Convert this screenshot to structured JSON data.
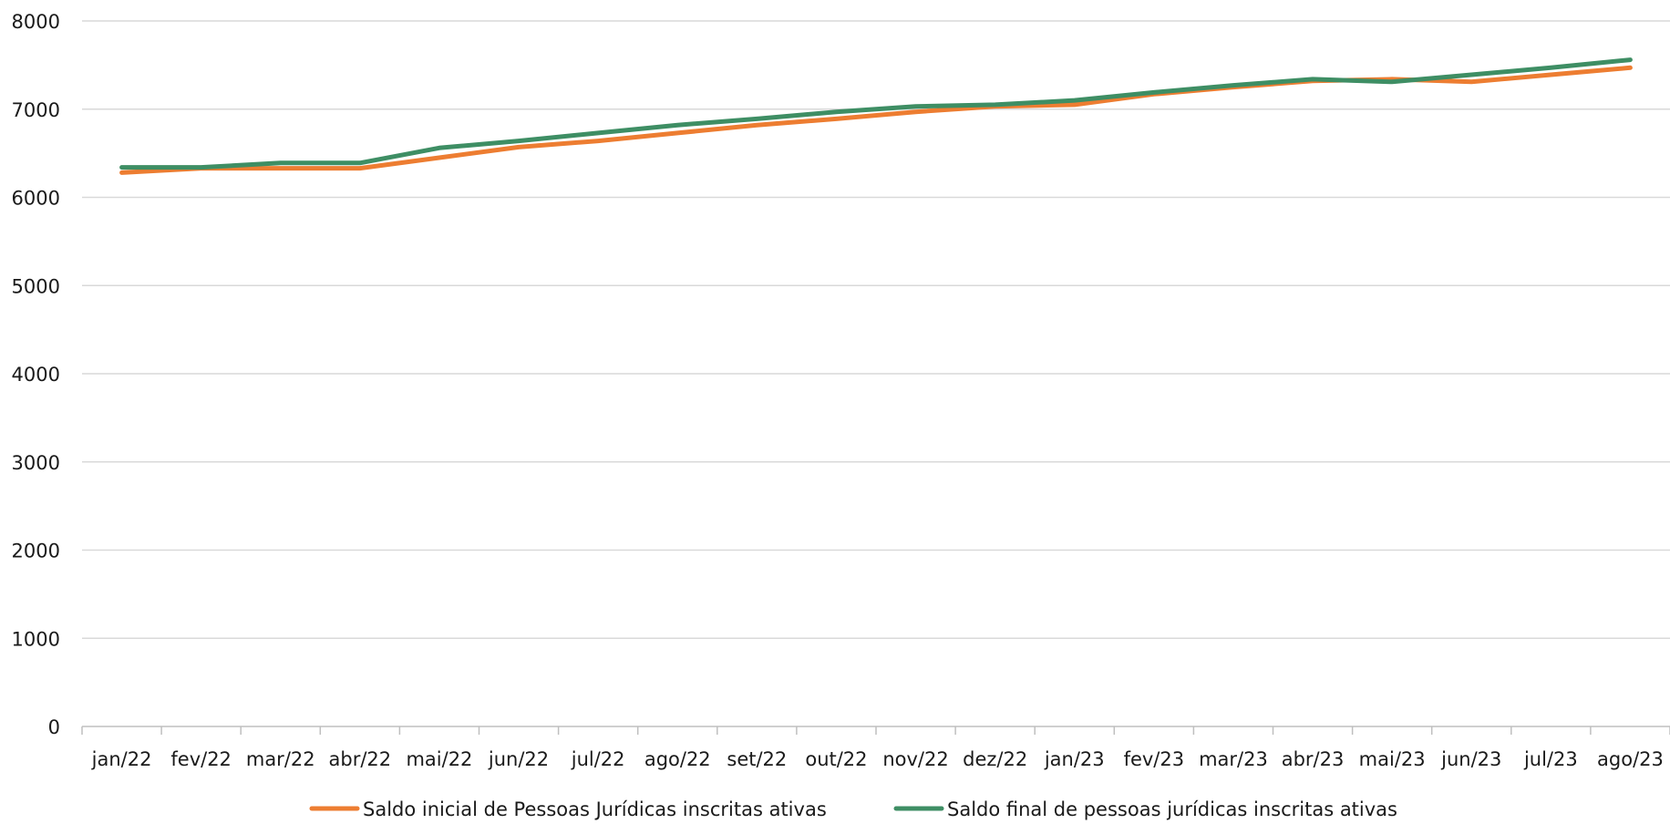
{
  "chart_data": {
    "type": "line",
    "categories": [
      "jan/22",
      "fev/22",
      "mar/22",
      "abr/22",
      "mai/22",
      "jun/22",
      "jul/22",
      "ago/22",
      "set/22",
      "out/22",
      "nov/22",
      "dez/22",
      "jan/23",
      "fev/23",
      "mar/23",
      "abr/23",
      "mai/23",
      "jun/23",
      "jul/23",
      "ago/23"
    ],
    "series": [
      {
        "name": "Saldo inicial de Pessoas Jurídicas inscritas ativas",
        "color": "#ED7D31",
        "values": [
          6280,
          6330,
          6330,
          6330,
          6450,
          6570,
          6640,
          6730,
          6820,
          6890,
          6970,
          7030,
          7050,
          7170,
          7250,
          7320,
          7340,
          7310,
          7390,
          7470
        ]
      },
      {
        "name": "Saldo final de pessoas jurídicas inscritas ativas",
        "color": "#3E8E64",
        "values": [
          6340,
          6340,
          6390,
          6390,
          6560,
          6640,
          6730,
          6820,
          6890,
          6970,
          7030,
          7050,
          7100,
          7190,
          7270,
          7340,
          7310,
          7390,
          7470,
          7560
        ]
      }
    ],
    "ylim": [
      0,
      8000
    ],
    "yticks": [
      "0",
      "1000",
      "2000",
      "3000",
      "4000",
      "5000",
      "6000",
      "7000",
      "8000"
    ],
    "grid": true,
    "legend_position": "bottom",
    "title": "",
    "xlabel": "",
    "ylabel": ""
  }
}
